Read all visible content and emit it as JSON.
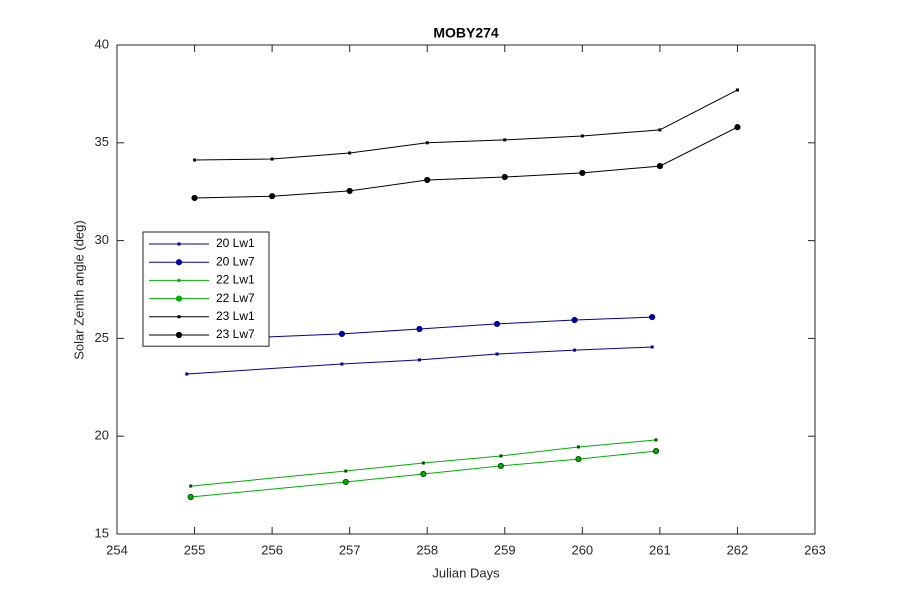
{
  "chart_data": {
    "type": "line",
    "title": "MOBY274",
    "x_label": "Julian Days",
    "y_label": "Solar Zenith angle (deg)",
    "xlim": [
      254,
      263
    ],
    "xticks": [
      254,
      255,
      256,
      257,
      258,
      259,
      260,
      261,
      262,
      263
    ],
    "ylim": [
      15,
      40
    ],
    "yticks": [
      15,
      20,
      25,
      30,
      35,
      40
    ],
    "legend": "upper-left-middle",
    "grid": false,
    "series": [
      {
        "name": "20 Lw1",
        "color": "#0000a0",
        "marker": "square",
        "x": [
          254.9,
          256.9,
          257.9,
          258.9,
          259.9,
          260.9
        ],
        "values": [
          23.18,
          23.69,
          23.9,
          24.2,
          24.4,
          24.56
        ]
      },
      {
        "name": "20 Lw7",
        "color": "#0000a0",
        "marker": "circle",
        "x": [
          254.9,
          256.9,
          257.9,
          258.9,
          259.9,
          260.9
        ],
        "values": [
          24.9,
          25.23,
          25.48,
          25.74,
          25.94,
          26.09
        ]
      },
      {
        "name": "22 Lw1",
        "color": "#00b000",
        "marker": "square",
        "x": [
          254.95,
          256.95,
          257.95,
          258.95,
          259.95,
          260.95
        ],
        "values": [
          17.45,
          18.22,
          18.63,
          18.99,
          19.45,
          19.81
        ]
      },
      {
        "name": "22 Lw7",
        "color": "#00b000",
        "marker": "circle",
        "x": [
          254.95,
          256.95,
          257.95,
          258.95,
          259.95,
          260.95
        ],
        "values": [
          16.89,
          17.66,
          18.07,
          18.48,
          18.83,
          19.24
        ]
      },
      {
        "name": "23 Lw1",
        "color": "#000000",
        "marker": "square",
        "x": [
          255,
          256,
          257,
          258,
          259,
          260,
          261,
          262
        ],
        "values": [
          34.12,
          34.17,
          34.48,
          35.0,
          35.15,
          35.35,
          35.66,
          37.7
        ]
      },
      {
        "name": "23 Lw7",
        "color": "#000000",
        "marker": "circle",
        "x": [
          255,
          256,
          257,
          258,
          259,
          260,
          261,
          262
        ],
        "values": [
          32.18,
          32.27,
          32.54,
          33.1,
          33.25,
          33.46,
          33.81,
          35.8
        ]
      }
    ]
  }
}
